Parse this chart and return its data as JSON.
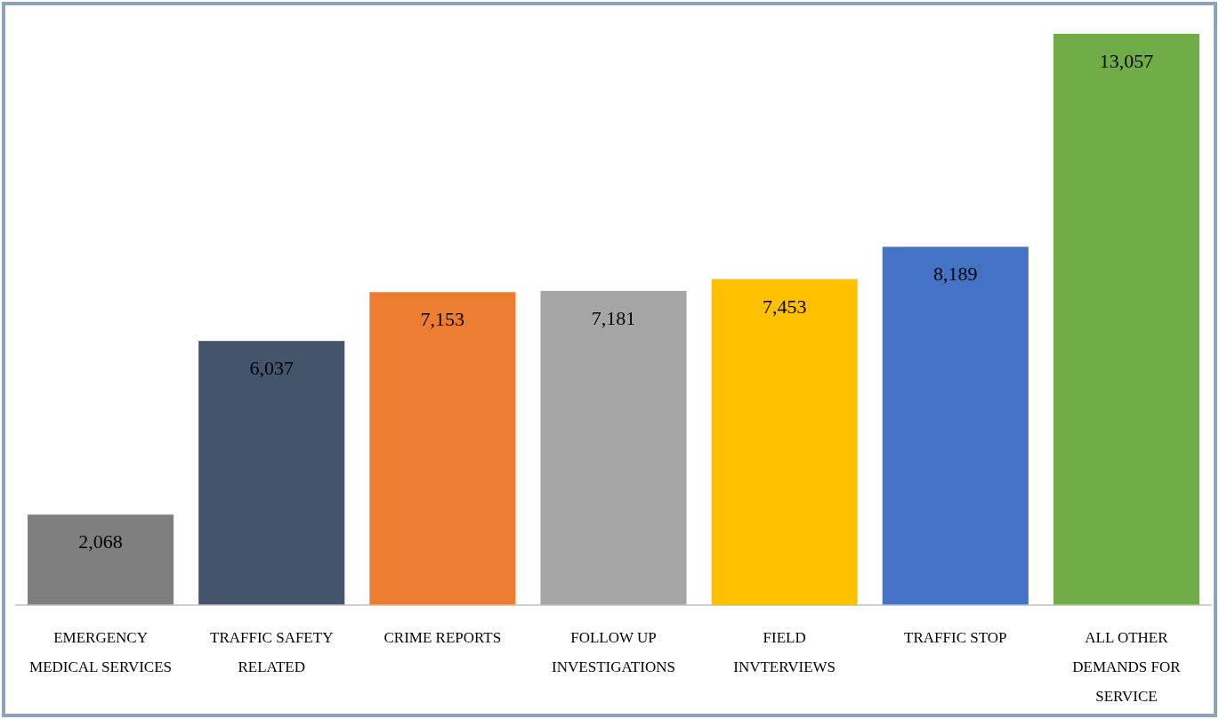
{
  "chart_data": {
    "type": "bar",
    "categories": [
      "EMERGENCY MEDICAL SERVICES",
      "TRAFFIC SAFETY RELATED",
      "CRIME REPORTS",
      "FOLLOW UP INVESTIGATIONS",
      "FIELD INVTERVIEWS",
      "TRAFFIC STOP",
      "ALL OTHER DEMANDS FOR SERVICE"
    ],
    "values": [
      2068,
      6037,
      7153,
      7181,
      7453,
      8189,
      13057
    ],
    "colors": [
      "#7f7f7f",
      "#44546a",
      "#ed7d31",
      "#a5a5a5",
      "#ffc000",
      "#4472c4",
      "#70ad47"
    ],
    "value_labels": [
      "2,068",
      "6,037",
      "7,153",
      "7,181",
      "7,453",
      "8,189",
      "13,057"
    ]
  }
}
